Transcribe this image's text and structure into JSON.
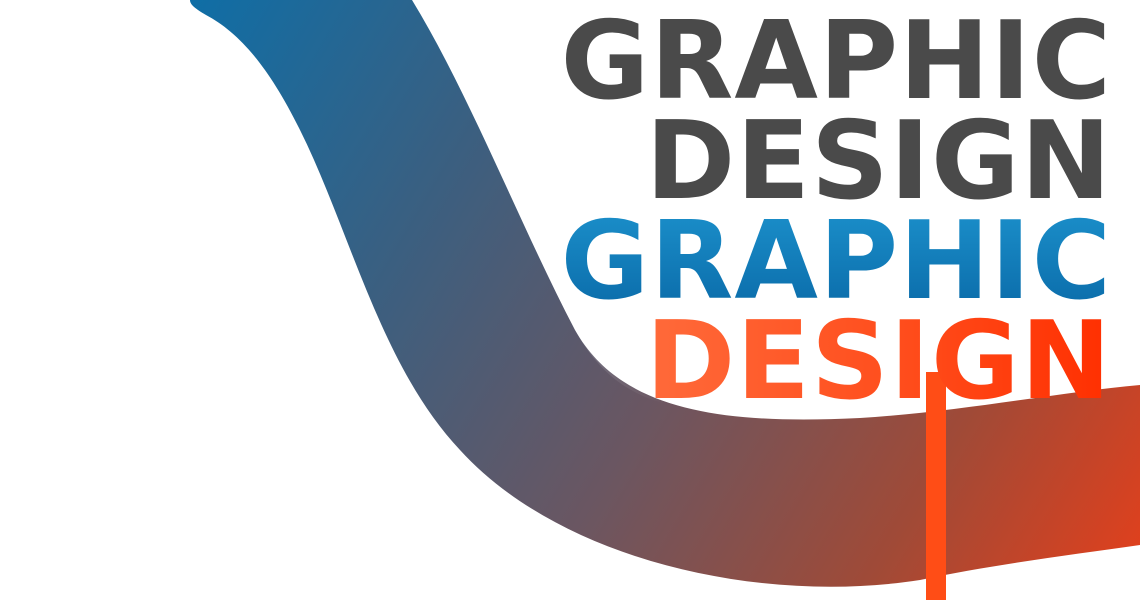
{
  "title_lines": [
    {
      "text": "GRAPHIC",
      "style": "gray",
      "color": "#4a4a4a"
    },
    {
      "text": "DESIGN",
      "style": "gray",
      "color": "#4a4a4a"
    },
    {
      "text": "GRAPHIC",
      "style": "blue",
      "color": "#0a78b6"
    },
    {
      "text": "DESIGN",
      "style": "orange",
      "color": "#ff5522"
    }
  ],
  "colors": {
    "ribbon_start": "#0f6ea6",
    "ribbon_mid": "#3f5d7b",
    "ribbon_mauve": "#6b5661",
    "ribbon_end": "#e0401d",
    "accent_bar": "#ff4d16",
    "background": "#ffffff"
  }
}
